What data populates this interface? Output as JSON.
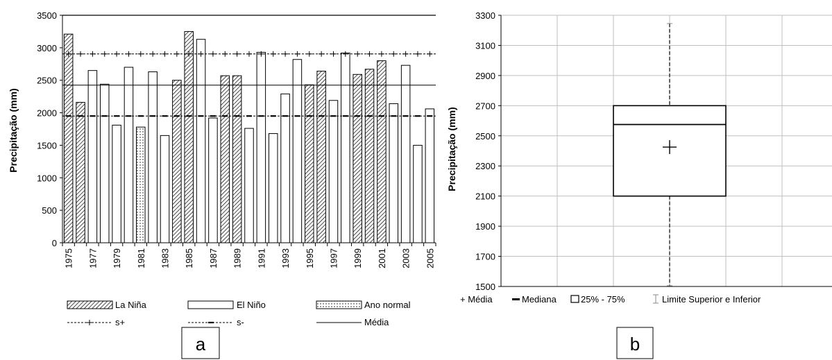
{
  "chart_data": [
    {
      "panel": "a",
      "type": "bar",
      "ylabel": "Precipitação (mm)",
      "ylim": [
        0,
        3500
      ],
      "yticks": [
        0,
        500,
        1000,
        1500,
        2000,
        2500,
        3000,
        3500
      ],
      "categories": [
        "1975",
        "1976",
        "1977",
        "1978",
        "1979",
        "1980",
        "1981",
        "1982",
        "1983",
        "1984",
        "1985",
        "1986",
        "1987",
        "1988",
        "1989",
        "1990",
        "1991",
        "1992",
        "1993",
        "1994",
        "1995",
        "1996",
        "1997",
        "1998",
        "1999",
        "2000",
        "2001",
        "2002",
        "2003",
        "2004",
        "2005"
      ],
      "xtick_labels": [
        "1975",
        "1977",
        "1979",
        "1981",
        "1983",
        "1985",
        "1987",
        "1989",
        "1991",
        "1993",
        "1995",
        "1997",
        "1999",
        "2001",
        "2003",
        "2005"
      ],
      "values": [
        3210,
        2160,
        2650,
        2440,
        1810,
        2700,
        1780,
        2630,
        1650,
        2500,
        3250,
        3130,
        1920,
        2570,
        2570,
        1760,
        2930,
        1680,
        2290,
        2820,
        2430,
        2640,
        2190,
        2920,
        2590,
        2670,
        2800,
        2140,
        2730,
        1500,
        2060
      ],
      "classes": [
        "LN",
        "LN",
        "EN",
        "EN",
        "EN",
        "EN",
        "N",
        "EN",
        "EN",
        "LN",
        "LN",
        "EN",
        "EN",
        "LN",
        "LN",
        "EN",
        "EN",
        "EN",
        "EN",
        "EN",
        "LN",
        "LN",
        "EN",
        "EN",
        "LN",
        "LN",
        "LN",
        "EN",
        "EN",
        "EN",
        "EN"
      ],
      "reference_lines": [
        {
          "key": "s_plus",
          "value": 2905,
          "style": "dashed-plus"
        },
        {
          "key": "s_minus",
          "value": 1950,
          "style": "dashed-dot"
        },
        {
          "key": "media",
          "value": 2425,
          "style": "solid"
        },
        {
          "key": "top",
          "value": 3500,
          "style": "solid"
        }
      ],
      "legend": {
        "la_nina": "La Niña",
        "el_nino": "El Niño",
        "ano_normal": "Ano normal",
        "s_plus": "s+",
        "s_minus": "s-",
        "media": "Média"
      },
      "panel_label": "a"
    },
    {
      "panel": "b",
      "type": "box",
      "ylabel": "Precipitação (mm)",
      "ylim": [
        1500,
        3300
      ],
      "yticks": [
        1500,
        1700,
        1900,
        2100,
        2300,
        2500,
        2700,
        2900,
        3100,
        3300
      ],
      "box": {
        "min": 1505,
        "q1": 2100,
        "median": 2575,
        "q3": 2700,
        "max": 3245,
        "mean": 2425
      },
      "legend": {
        "media": "+ Média",
        "mediana": "Mediana",
        "quartis": "25% - 75%",
        "limites": "Limite Superior e Inferior"
      },
      "panel_label": "b"
    }
  ]
}
